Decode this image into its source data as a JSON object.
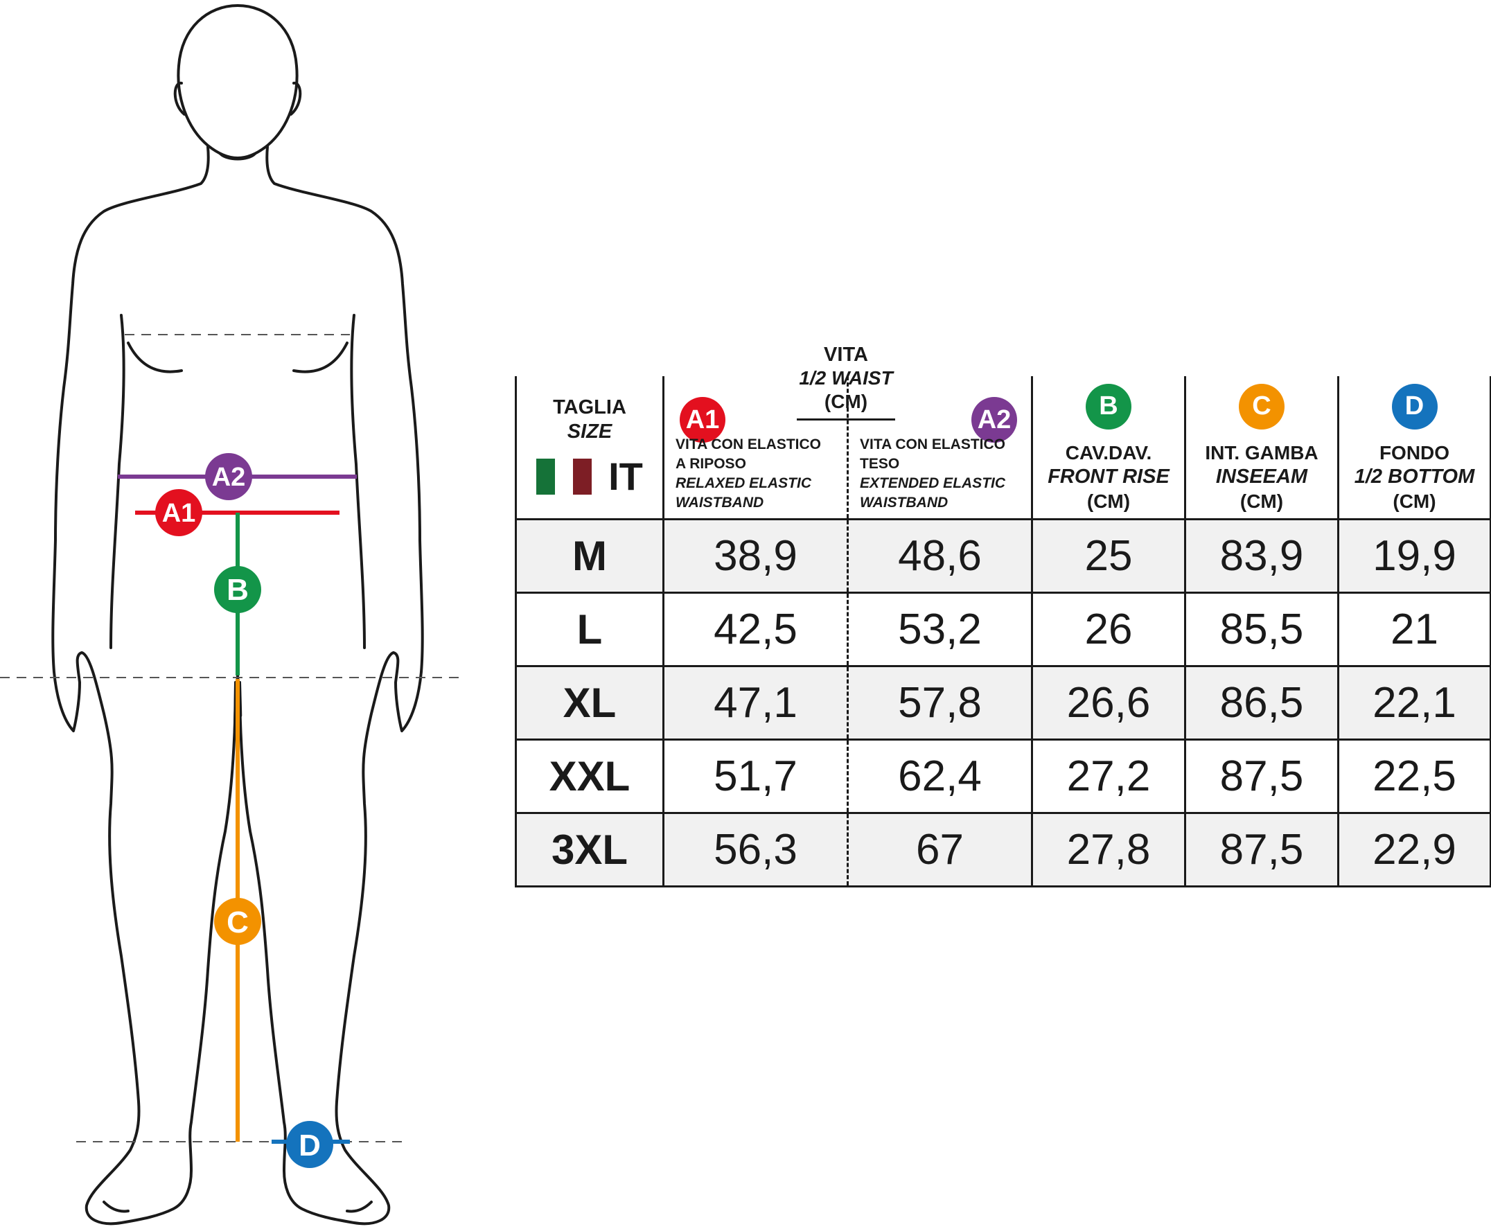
{
  "colors": {
    "a1": "#e3101f",
    "a2": "#7b3a92",
    "b": "#139549",
    "c": "#f39200",
    "d": "#1473bd",
    "flag_green": "#157238",
    "flag_red": "#7d1e25",
    "row_shade": "#f1f1f1"
  },
  "figure": {
    "badges": {
      "a1": "A1",
      "a2": "A2",
      "b": "B",
      "c": "C",
      "d": "D"
    }
  },
  "vita": {
    "title": "VITA",
    "subtitle": "1/2 WAIST",
    "unit": "(CM)"
  },
  "header": {
    "size": {
      "line1": "TAGLIA",
      "line2": "SIZE",
      "code": "IT"
    },
    "a1": {
      "badge": "A1",
      "line1": "VITA CON ELASTICO",
      "line2": "A RIPOSO",
      "line3": "RELAXED ELASTIC",
      "line4": "WAISTBAND"
    },
    "a2": {
      "badge": "A2",
      "line1": "VITA CON ELASTICO",
      "line2": "TESO",
      "line3": "EXTENDED ELASTIC",
      "line4": "WAISTBAND"
    },
    "b": {
      "badge": "B",
      "line1": "CAV.DAV.",
      "line2": "FRONT RISE",
      "unit": "(CM)"
    },
    "c": {
      "badge": "C",
      "line1": "INT. GAMBA",
      "line2": "INSEEAM",
      "unit": "(CM)"
    },
    "d": {
      "badge": "D",
      "line1": "FONDO",
      "line2": "1/2 BOTTOM",
      "unit": "(CM)"
    }
  },
  "rows": [
    {
      "size": "M",
      "a1": "38,9",
      "a2": "48,6",
      "b": "25",
      "c": "83,9",
      "d": "19,9"
    },
    {
      "size": "L",
      "a1": "42,5",
      "a2": "53,2",
      "b": "26",
      "c": "85,5",
      "d": "21"
    },
    {
      "size": "XL",
      "a1": "47,1",
      "a2": "57,8",
      "b": "26,6",
      "c": "86,5",
      "d": "22,1"
    },
    {
      "size": "XXL",
      "a1": "51,7",
      "a2": "62,4",
      "b": "27,2",
      "c": "87,5",
      "d": "22,5"
    },
    {
      "size": "3XL",
      "a1": "56,3",
      "a2": "67",
      "b": "27,8",
      "c": "87,5",
      "d": "22,9"
    }
  ]
}
